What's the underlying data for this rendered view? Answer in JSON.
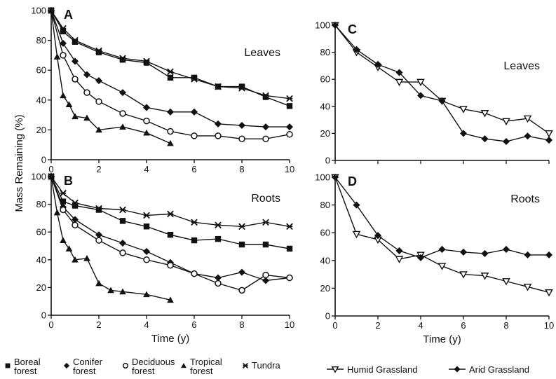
{
  "figure": {
    "ylabel": "Mass Remaining (%)",
    "xlabel": "Time (y)"
  },
  "legend_left": [
    "Boreal forest",
    "Conifer forest",
    "Deciduous forest",
    "Tropical forest",
    "Tundra"
  ],
  "legend_right": [
    "Humid Grassland",
    "Arid Grassland"
  ],
  "colors": {
    "ink": "#111111"
  },
  "chart_data": [
    {
      "type": "line",
      "panel": "A",
      "title": "Leaves",
      "xlabel": "",
      "ylabel": "Mass Remaining (%)",
      "xlim": [
        0,
        10
      ],
      "ylim": [
        0,
        100
      ],
      "xticks": [
        0,
        2,
        4,
        6,
        8,
        10
      ],
      "yticks": [
        0,
        20,
        40,
        60,
        80,
        100
      ],
      "show_xtick_labels": true,
      "grid": false,
      "series": [
        {
          "name": "Boreal forest",
          "marker": "square",
          "x": [
            0,
            0.5,
            1,
            2,
            3,
            4,
            5,
            6,
            7,
            8,
            9,
            10
          ],
          "y": [
            100,
            86,
            79,
            72,
            67,
            65,
            55,
            55,
            49,
            49,
            42,
            36
          ]
        },
        {
          "name": "Conifer forest",
          "marker": "diamond",
          "x": [
            0,
            0.5,
            1,
            1.5,
            2,
            3,
            4,
            5,
            6,
            7,
            8,
            9,
            10
          ],
          "y": [
            100,
            78,
            66,
            57,
            53,
            45,
            35,
            32,
            32,
            24,
            23,
            22,
            22
          ]
        },
        {
          "name": "Deciduous forest",
          "marker": "circle",
          "x": [
            0,
            0.5,
            1,
            1.5,
            2,
            3,
            4,
            5,
            6,
            7,
            8,
            9,
            10
          ],
          "y": [
            100,
            70,
            54,
            45,
            39,
            31,
            26,
            19,
            16,
            16,
            14,
            14,
            17
          ]
        },
        {
          "name": "Tropical forest",
          "marker": "triangle",
          "x": [
            0,
            0.25,
            0.5,
            0.75,
            1,
            1.5,
            2,
            3,
            4,
            5
          ],
          "y": [
            100,
            69,
            43,
            37,
            29,
            28,
            20,
            22,
            18,
            11
          ]
        },
        {
          "name": "Tundra",
          "marker": "star",
          "x": [
            0,
            0.5,
            1,
            2,
            3,
            4,
            5,
            6,
            7,
            8,
            9,
            10
          ],
          "y": [
            100,
            88,
            80,
            73,
            68,
            66,
            59,
            54,
            49,
            48,
            43,
            41
          ]
        }
      ]
    },
    {
      "type": "line",
      "panel": "B",
      "title": "Roots",
      "xlabel": "Time (y)",
      "ylabel": "Mass Remaining (%)",
      "xlim": [
        0,
        10
      ],
      "ylim": [
        0,
        100
      ],
      "xticks": [
        0,
        2,
        4,
        6,
        8,
        10
      ],
      "yticks": [
        0,
        20,
        40,
        60,
        80,
        100
      ],
      "show_xtick_labels": true,
      "grid": false,
      "series": [
        {
          "name": "Boreal forest",
          "marker": "square",
          "x": [
            0,
            0.5,
            1,
            2,
            3,
            4,
            5,
            6,
            7,
            8,
            9,
            10
          ],
          "y": [
            100,
            82,
            79,
            76,
            68,
            64,
            58,
            54,
            55,
            51,
            51,
            48
          ]
        },
        {
          "name": "Conifer forest",
          "marker": "diamond",
          "x": [
            0,
            0.5,
            1,
            2,
            3,
            4,
            5,
            6,
            7,
            8,
            9,
            10
          ],
          "y": [
            100,
            78,
            69,
            58,
            52,
            46,
            38,
            30,
            27,
            31,
            25,
            27
          ]
        },
        {
          "name": "Deciduous forest",
          "marker": "circle",
          "x": [
            0,
            0.5,
            1,
            2,
            3,
            4,
            5,
            6,
            7,
            8,
            9,
            10
          ],
          "y": [
            100,
            76,
            65,
            54,
            45,
            40,
            36,
            30,
            23,
            18,
            29,
            27
          ]
        },
        {
          "name": "Tropical forest",
          "marker": "triangle",
          "x": [
            0,
            0.25,
            0.5,
            0.75,
            1,
            1.5,
            2,
            2.5,
            3,
            4,
            5
          ],
          "y": [
            100,
            74,
            54,
            48,
            40,
            41,
            23,
            18,
            17,
            15,
            11
          ]
        },
        {
          "name": "Tundra",
          "marker": "star",
          "x": [
            0,
            0.5,
            1,
            2,
            3,
            4,
            5,
            6,
            7,
            8,
            9,
            10
          ],
          "y": [
            100,
            88,
            81,
            77,
            76,
            72,
            73,
            67,
            65,
            64,
            67,
            64
          ]
        }
      ]
    },
    {
      "type": "line",
      "panel": "C",
      "title": "Leaves",
      "xlabel": "",
      "ylabel": "",
      "xlim": [
        0,
        10
      ],
      "ylim": [
        0,
        100
      ],
      "xticks": [
        0,
        2,
        4,
        6,
        8,
        10
      ],
      "yticks": [
        0,
        20,
        40,
        60,
        80,
        100
      ],
      "show_xtick_labels": false,
      "grid": false,
      "series": [
        {
          "name": "Humid Grassland",
          "marker": "tri-down",
          "x": [
            0,
            1,
            2,
            3,
            4,
            5,
            6,
            7,
            8,
            9,
            10
          ],
          "y": [
            100,
            80,
            69,
            58,
            58,
            44,
            38,
            35,
            29,
            31,
            20
          ]
        },
        {
          "name": "Arid Grassland",
          "marker": "diamond",
          "x": [
            0,
            1,
            2,
            3,
            4,
            5,
            6,
            7,
            8,
            9,
            10
          ],
          "y": [
            100,
            82,
            71,
            65,
            48,
            44,
            20,
            16,
            14,
            18,
            15
          ]
        }
      ]
    },
    {
      "type": "line",
      "panel": "D",
      "title": "Roots",
      "xlabel": "Time (y)",
      "ylabel": "",
      "xlim": [
        0,
        10
      ],
      "ylim": [
        0,
        100
      ],
      "xticks": [
        0,
        2,
        4,
        6,
        8,
        10
      ],
      "yticks": [
        0,
        20,
        40,
        60,
        80,
        100
      ],
      "show_xtick_labels": true,
      "grid": false,
      "series": [
        {
          "name": "Humid Grassland",
          "marker": "tri-down",
          "x": [
            0,
            1,
            2,
            3,
            4,
            5,
            6,
            7,
            8,
            9,
            10
          ],
          "y": [
            100,
            59,
            55,
            41,
            44,
            36,
            30,
            29,
            25,
            21,
            17
          ]
        },
        {
          "name": "Arid Grassland",
          "marker": "diamond",
          "x": [
            0,
            1,
            2,
            3,
            4,
            5,
            6,
            7,
            8,
            9,
            10
          ],
          "y": [
            100,
            80,
            58,
            47,
            42,
            48,
            46,
            45,
            48,
            44,
            44
          ]
        }
      ]
    }
  ]
}
